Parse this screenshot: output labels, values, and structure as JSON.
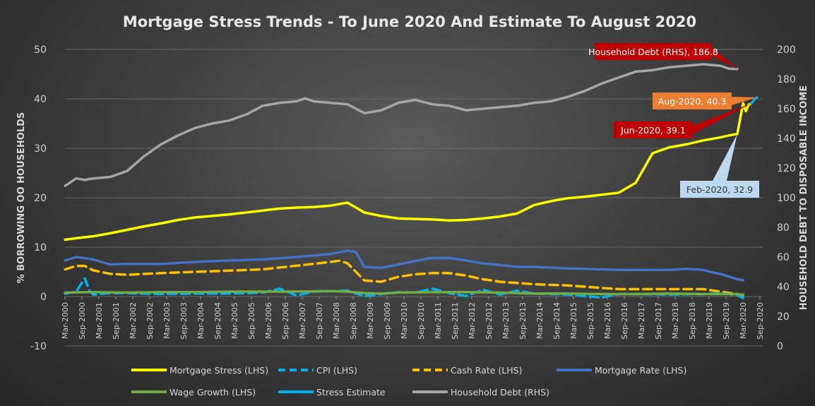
{
  "chart_data": {
    "type": "line",
    "title": "Mortgage Stress Trends - To June 2020 And Estimate To August 2020",
    "ylabel": "% BORROWING OO HOUSEHOLDS",
    "y2label": "HOUSEHOLD DEBT TO DISPOSABLE INCOME",
    "ylim": [
      -10,
      50
    ],
    "y2lim": [
      0,
      200
    ],
    "yticks": [
      "-10",
      "0",
      "10",
      "20",
      "30",
      "40",
      "50"
    ],
    "y2ticks": [
      "0",
      "20",
      "40",
      "60",
      "80",
      "100",
      "120",
      "140",
      "160",
      "180",
      "200"
    ],
    "xlim": [
      2000.167,
      2020.75
    ],
    "xticks": [
      "Mar-2000",
      "Sep-2000",
      "Mar-2001",
      "Sep-2001",
      "Mar-2002",
      "Sep-2002",
      "Mar-2003",
      "Sep-2003",
      "Mar-2004",
      "Sep-2004",
      "Mar-2005",
      "Sep-2005",
      "Mar-2006",
      "Sep-2006",
      "Mar-2007",
      "Sep-2007",
      "Mar-2008",
      "Sep-2008",
      "Mar-2009",
      "Sep-2009",
      "Mar-2010",
      "Sep-2010",
      "Mar-2011",
      "Sep-2011",
      "Mar-2012",
      "Sep-2012",
      "Mar-2013",
      "Sep-2013",
      "Mar-2014",
      "Sep-2014",
      "Mar-2015",
      "Sep-2015",
      "Mar-2016",
      "Sep-2016",
      "Mar-2017",
      "Sep-2017",
      "Mar-2018",
      "Sep-2018",
      "Mar-2019",
      "Sep-2019",
      "Mar-2020",
      "Sep-2020"
    ],
    "series": [
      {
        "name": "Household Debt (RHS)",
        "axis": "right",
        "color": "#a6a6a6",
        "dash": "solid",
        "x": [
          2000.17,
          2000.5,
          2000.75,
          2001.0,
          2001.5,
          2002.0,
          2002.5,
          2003.0,
          2003.5,
          2004.0,
          2004.5,
          2005.0,
          2005.5,
          2006.0,
          2006.5,
          2007.0,
          2007.25,
          2007.5,
          2008.0,
          2008.5,
          2009.0,
          2009.5,
          2010.0,
          2010.5,
          2011.0,
          2011.5,
          2012.0,
          2012.5,
          2013.0,
          2013.5,
          2014.0,
          2014.5,
          2015.0,
          2015.5,
          2016.0,
          2016.5,
          2017.0,
          2017.5,
          2018.0,
          2018.5,
          2019.0,
          2019.5,
          2019.75,
          2020.0
        ],
        "y": [
          108,
          113,
          112,
          113,
          114,
          118,
          128,
          136,
          142,
          147,
          150,
          152,
          156,
          162,
          164,
          165,
          167,
          165,
          164,
          163,
          157,
          159,
          164,
          166,
          163,
          162,
          159,
          160,
          161,
          162,
          164,
          165,
          168,
          172,
          177,
          181,
          185,
          186,
          188,
          189,
          190,
          189,
          187,
          186.8
        ]
      },
      {
        "name": "Mortgage Stress (LHS)",
        "axis": "left",
        "color": "#ffff00",
        "dash": "solid",
        "x": [
          2000.17,
          2000.5,
          2001.0,
          2001.5,
          2002.0,
          2002.5,
          2003.0,
          2003.5,
          2004.0,
          2004.5,
          2005.0,
          2005.5,
          2006.0,
          2006.5,
          2007.0,
          2007.5,
          2008.0,
          2008.5,
          2009.0,
          2009.5,
          2010.0,
          2010.5,
          2011.0,
          2011.5,
          2012.0,
          2012.5,
          2013.0,
          2013.5,
          2014.0,
          2014.5,
          2015.0,
          2015.5,
          2016.0,
          2016.5,
          2017.0,
          2017.25,
          2017.5,
          2018.0,
          2018.5,
          2019.0,
          2019.5,
          2019.75,
          2020.0,
          2020.17,
          2020.25,
          2020.33,
          2020.42
        ],
        "y": [
          11.5,
          11.8,
          12.2,
          12.8,
          13.5,
          14.2,
          14.8,
          15.5,
          16,
          16.3,
          16.6,
          17,
          17.4,
          17.8,
          18,
          18.1,
          18.4,
          19,
          17,
          16.3,
          15.8,
          15.7,
          15.6,
          15.4,
          15.5,
          15.8,
          16.2,
          16.8,
          18.5,
          19.3,
          19.9,
          20.2,
          20.6,
          21,
          23,
          26,
          29,
          30.2,
          30.8,
          31.6,
          32.2,
          32.6,
          32.9,
          39.1,
          37.5,
          38.8,
          39.1
        ]
      },
      {
        "name": "Stress Estimate",
        "axis": "left",
        "color": "#00b0f0",
        "dash": "solid",
        "x": [
          2020.42,
          2020.5,
          2020.58
        ],
        "y": [
          39.1,
          39.8,
          40.3
        ]
      },
      {
        "name": "Mortgage Rate (LHS)",
        "axis": "left",
        "color": "#4472c4",
        "dash": "solid",
        "x": [
          2000.17,
          2000.5,
          2001.0,
          2001.5,
          2002.0,
          2003.0,
          2004.0,
          2005.0,
          2006.0,
          2007.0,
          2008.0,
          2008.5,
          2008.75,
          2009.0,
          2009.5,
          2010.0,
          2010.5,
          2011.0,
          2011.5,
          2012.0,
          2012.5,
          2013.0,
          2013.5,
          2014.0,
          2015.0,
          2016.0,
          2016.5,
          2017.0,
          2018.0,
          2018.5,
          2019.0,
          2019.25,
          2019.5,
          2020.0,
          2020.17
        ],
        "y": [
          7.3,
          8,
          7.5,
          6.5,
          6.6,
          6.6,
          7,
          7.3,
          7.5,
          8,
          8.6,
          9.3,
          9,
          6,
          5.8,
          6.5,
          7.2,
          7.8,
          7.8,
          7.3,
          6.7,
          6.4,
          6,
          6,
          5.7,
          5.5,
          5.4,
          5.4,
          5.4,
          5.6,
          5.4,
          4.9,
          4.6,
          3.5,
          3.3
        ]
      },
      {
        "name": "Cash Rate (LHS)",
        "axis": "left",
        "color": "#ffc000",
        "dash": "dashed",
        "x": [
          2000.17,
          2000.5,
          2000.75,
          2001.0,
          2001.5,
          2002.0,
          2003.0,
          2004.0,
          2005.0,
          2006.0,
          2007.0,
          2008.0,
          2008.25,
          2008.5,
          2008.75,
          2009.0,
          2009.5,
          2010.0,
          2010.5,
          2011.0,
          2011.5,
          2012.0,
          2012.5,
          2013.0,
          2013.5,
          2014.0,
          2015.0,
          2015.5,
          2016.0,
          2016.5,
          2017.0,
          2018.0,
          2019.0,
          2019.5,
          2019.75,
          2020.0,
          2020.17
        ],
        "y": [
          5.5,
          6.2,
          6.2,
          5.3,
          4.6,
          4.4,
          4.75,
          5,
          5.25,
          5.5,
          6.25,
          7,
          7.25,
          6.75,
          5,
          3.25,
          3,
          4,
          4.5,
          4.75,
          4.75,
          4.25,
          3.5,
          3,
          2.75,
          2.5,
          2.25,
          2,
          1.75,
          1.5,
          1.5,
          1.5,
          1.5,
          1,
          0.75,
          0.5,
          0.25
        ]
      },
      {
        "name": "CPI (LHS)",
        "axis": "left",
        "color": "#00b0f0",
        "dash": "dashed",
        "x": [
          2000.17,
          2000.5,
          2000.75,
          2000.9,
          2001.0,
          2001.5,
          2002.0,
          2003.0,
          2004.0,
          2005.0,
          2006.0,
          2006.5,
          2007.0,
          2007.5,
          2008.0,
          2008.5,
          2009.0,
          2009.5,
          2010.0,
          2010.5,
          2011.0,
          2011.5,
          2012.0,
          2012.5,
          2013.0,
          2013.5,
          2014.0,
          2015.0,
          2016.0,
          2016.5,
          2017.0,
          2018.0,
          2019.0,
          2019.5,
          2020.0,
          2020.17
        ],
        "y": [
          0.6,
          1,
          3.7,
          1,
          0.4,
          0.7,
          0.7,
          0.5,
          0.6,
          0.6,
          0.8,
          1.6,
          0.2,
          1,
          1.1,
          1.2,
          0.1,
          0.5,
          0.9,
          0.8,
          1.6,
          0.7,
          0.1,
          1.4,
          0.4,
          1.2,
          0.6,
          0.4,
          -0.2,
          0.5,
          0.5,
          0.4,
          0.5,
          0.7,
          0.3,
          -0.3
        ]
      },
      {
        "name": "Wage Growth (LHS)",
        "axis": "left",
        "color": "#70ad47",
        "dash": "solid",
        "x": [
          2000.17,
          2001.0,
          2002.0,
          2003.0,
          2004.0,
          2005.0,
          2006.0,
          2007.0,
          2008.0,
          2008.5,
          2009.0,
          2009.5,
          2010.0,
          2011.0,
          2012.0,
          2013.0,
          2014.0,
          2015.0,
          2016.0,
          2017.0,
          2018.0,
          2019.0,
          2020.0,
          2020.17
        ],
        "y": [
          0.8,
          0.9,
          0.8,
          0.9,
          0.9,
          1,
          1,
          1,
          1.1,
          1,
          0.7,
          0.6,
          0.8,
          0.9,
          0.9,
          0.8,
          0.6,
          0.6,
          0.5,
          0.5,
          0.6,
          0.5,
          0.5,
          0.4
        ]
      }
    ],
    "annotations": [
      {
        "label": "Household Debt (RHS), 186.8",
        "point": [
          2020.0,
          186.8
        ],
        "axis": "right",
        "style": "red"
      },
      {
        "label": "Aug-2020, 40.3",
        "point": [
          2020.58,
          40.3
        ],
        "axis": "left",
        "style": "orange"
      },
      {
        "label": "Jun-2020, 39.1",
        "point": [
          2020.42,
          39.1
        ],
        "axis": "left",
        "style": "red"
      },
      {
        "label": "Feb-2020, 32.9",
        "point": [
          2020.0,
          32.9
        ],
        "axis": "left",
        "style": "lightblue"
      }
    ],
    "legend": [
      {
        "label": "Mortgage Stress (LHS)",
        "color": "#ffff00",
        "dash": "solid"
      },
      {
        "label": "CPI (LHS)",
        "color": "#00b0f0",
        "dash": "dashed"
      },
      {
        "label": "Cash Rate (LHS)",
        "color": "#ffc000",
        "dash": "dashed"
      },
      {
        "label": "Mortgage Rate (LHS)",
        "color": "#4472c4",
        "dash": "solid"
      },
      {
        "label": "Wage Growth (LHS)",
        "color": "#70ad47",
        "dash": "solid"
      },
      {
        "label": "Stress Estimate",
        "color": "#00b0f0",
        "dash": "solid"
      },
      {
        "label": "Household Debt (RHS)",
        "color": "#a6a6a6",
        "dash": "solid"
      }
    ],
    "legend_position": "bottom",
    "grid": true
  }
}
